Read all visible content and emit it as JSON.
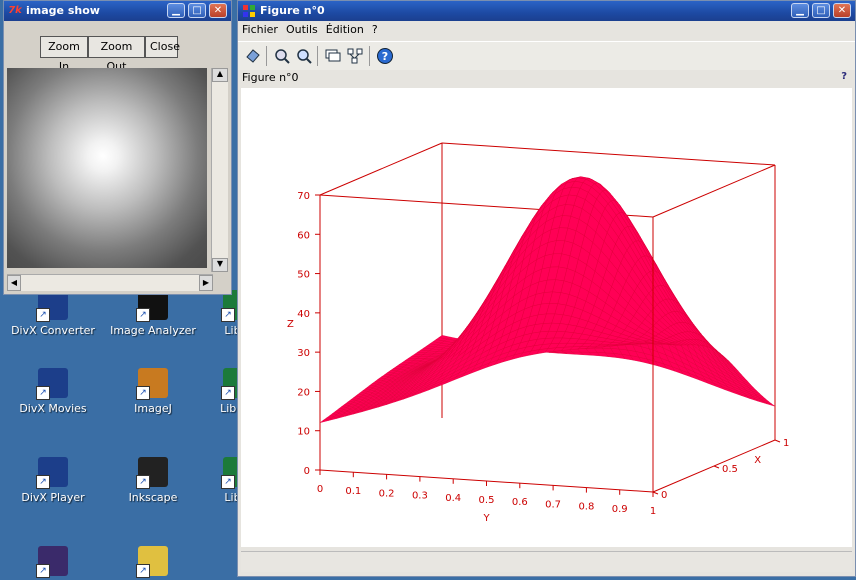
{
  "desktop": {
    "icons": [
      {
        "label": "DivX Converter",
        "icon": "divx-converter-icon"
      },
      {
        "label": "Image Analyzer",
        "icon": "image-analyzer-icon"
      },
      {
        "label": "Libre",
        "icon": "libreoffice-icon"
      },
      {
        "label": "DivX Movies",
        "icon": "divx-movies-icon"
      },
      {
        "label": "ImageJ",
        "icon": "imagej-icon"
      },
      {
        "label": "LibreO",
        "icon": "libreoffice-icon"
      },
      {
        "label": "DivX Player",
        "icon": "divx-player-icon"
      },
      {
        "label": "Inkscape",
        "icon": "inkscape-icon"
      },
      {
        "label": "Libre",
        "icon": "libreoffice-icon"
      },
      {
        "label": "",
        "icon": "eclipse-icon"
      },
      {
        "label": "",
        "icon": "magnifier-icon"
      }
    ]
  },
  "image_show": {
    "title": "image show",
    "app_icon": "7k",
    "buttons": {
      "zoom_in": "Zoom In",
      "zoom_out": "Zoom Out",
      "close": "Close"
    }
  },
  "figure_window": {
    "title": "Figure n°0",
    "menu": [
      "Fichier",
      "Outils",
      "Édition",
      "?"
    ],
    "figure_label": "Figure n°0",
    "help": "?",
    "accent": "#cc0000",
    "surface_color": "#ff0055"
  },
  "chart_data": {
    "type": "surface",
    "title": "",
    "xlabel": "X",
    "ylabel": "Y",
    "zlabel": "Z",
    "x_ticks": [
      "0",
      "0.5",
      "1"
    ],
    "y_ticks": [
      "0",
      "0.1",
      "0.2",
      "0.3",
      "0.4",
      "0.5",
      "0.6",
      "0.7",
      "0.8",
      "0.9",
      "1"
    ],
    "z_ticks": [
      "0",
      "10",
      "20",
      "30",
      "40",
      "50",
      "60",
      "70"
    ],
    "xlim": [
      0,
      1
    ],
    "ylim": [
      0,
      1
    ],
    "zlim": [
      0,
      70
    ],
    "peak": {
      "x": 0.5,
      "y": 0.6,
      "z": 67
    },
    "corner_values": {
      "x0_y0": 12,
      "x0_y1": 38,
      "x1_y0": 21,
      "x1_y1": 8
    }
  }
}
